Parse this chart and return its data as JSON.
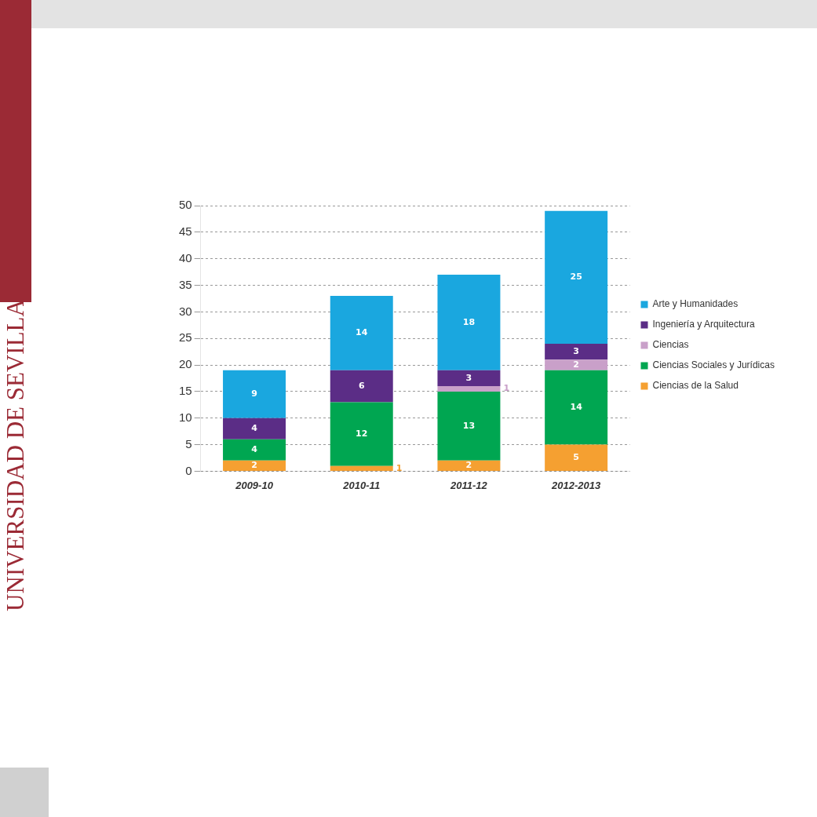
{
  "chart_data": {
    "type": "bar",
    "stacked": true,
    "categories": [
      "2009-10",
      "2010-11",
      "2011-12",
      "2012-2013"
    ],
    "series": [
      {
        "name": "Ciencias de la Salud",
        "color": "#f5a031",
        "values": [
          2,
          1,
          2,
          5
        ]
      },
      {
        "name": "Ciencias Sociales y Jurídicas",
        "color": "#00a651",
        "values": [
          4,
          12,
          13,
          14
        ]
      },
      {
        "name": "Ciencias",
        "color": "#c9a0c9",
        "values": [
          null,
          null,
          1,
          2
        ]
      },
      {
        "name": "Ingeniería y Arquitectura",
        "color": "#5b2d86",
        "values": [
          4,
          6,
          3,
          3
        ]
      },
      {
        "name": "Arte y Humanidades",
        "color": "#1aa7df",
        "values": [
          9,
          14,
          18,
          25
        ]
      }
    ],
    "ylim": [
      0,
      50
    ],
    "yticks": [
      0,
      5,
      10,
      15,
      20,
      25,
      30,
      35,
      40,
      45,
      50
    ],
    "grid": "y",
    "legend": "right",
    "data_labels": true,
    "annotations": [
      "UNIVERSIDAD DE SEVILLA"
    ]
  }
}
